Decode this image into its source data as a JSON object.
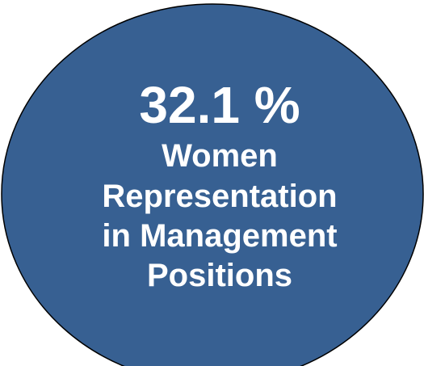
{
  "badge": {
    "headline": "32.1 %",
    "label_lines": [
      "Women",
      "Representation",
      "in Management",
      "Positions"
    ]
  }
}
